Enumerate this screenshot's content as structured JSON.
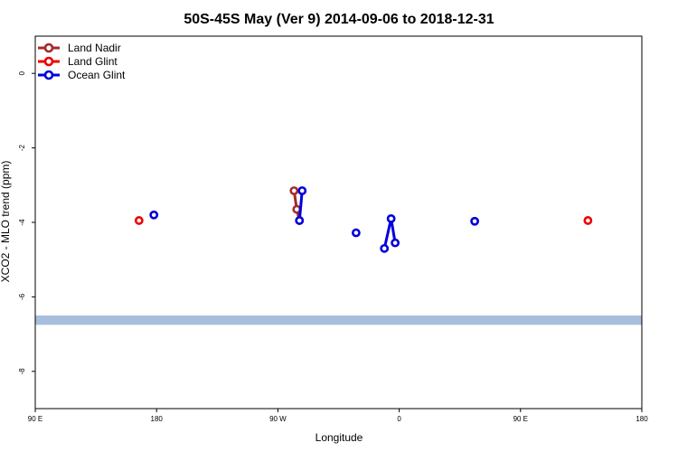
{
  "chart_data": {
    "type": "line",
    "title": "50S-45S May (Ver 9)   2014-09-06 to 2018-12-31",
    "xlabel": "Longitude",
    "ylabel": "XCO2 - MLO trend (ppm)",
    "xlim": [
      90,
      450
    ],
    "ylim": [
      -9,
      1
    ],
    "x_ticks": [
      {
        "value": 90,
        "label": "90 E"
      },
      {
        "value": 180,
        "label": "180"
      },
      {
        "value": 270,
        "label": "90 W"
      },
      {
        "value": 360,
        "label": "0"
      },
      {
        "value": 450,
        "label": "90 E"
      },
      {
        "value": 540,
        "label": "180"
      }
    ],
    "y_ticks": [
      {
        "value": 0,
        "label": "0"
      },
      {
        "value": -2,
        "label": "-2"
      },
      {
        "value": -4,
        "label": "-4"
      },
      {
        "value": -6,
        "label": "-6"
      },
      {
        "value": -8,
        "label": "-8"
      }
    ],
    "legend_position": "top-left",
    "grid": false,
    "series": [
      {
        "name": "Land Nadir",
        "color": "#a52a2a",
        "points": [
          {
            "x": 282,
            "y": -3.15
          },
          {
            "x": 284,
            "y": -3.65
          },
          {
            "x": 286,
            "y": -3.95
          }
        ],
        "connect": true
      },
      {
        "name": "Land Glint",
        "color": "#ee0000",
        "points": [
          {
            "x": 167,
            "y": -3.95
          },
          {
            "x": 500,
            "y": -3.95
          }
        ],
        "connect": false
      },
      {
        "name": "Ocean Glint",
        "color": "#0000dd",
        "segments": [
          [
            {
              "x": 178,
              "y": -3.8
            }
          ],
          [
            {
              "x": 286,
              "y": -3.95
            },
            {
              "x": 288,
              "y": -3.15
            }
          ],
          [
            {
              "x": 328,
              "y": -4.28
            }
          ],
          [
            {
              "x": 349,
              "y": -4.7
            },
            {
              "x": 354,
              "y": -3.9
            },
            {
              "x": 357,
              "y": -4.55
            }
          ],
          [
            {
              "x": 416,
              "y": -3.97
            }
          ]
        ]
      }
    ],
    "background_band": {
      "y_range": [
        -6.75,
        -6.5
      ],
      "color": "#a7bfdc"
    }
  }
}
